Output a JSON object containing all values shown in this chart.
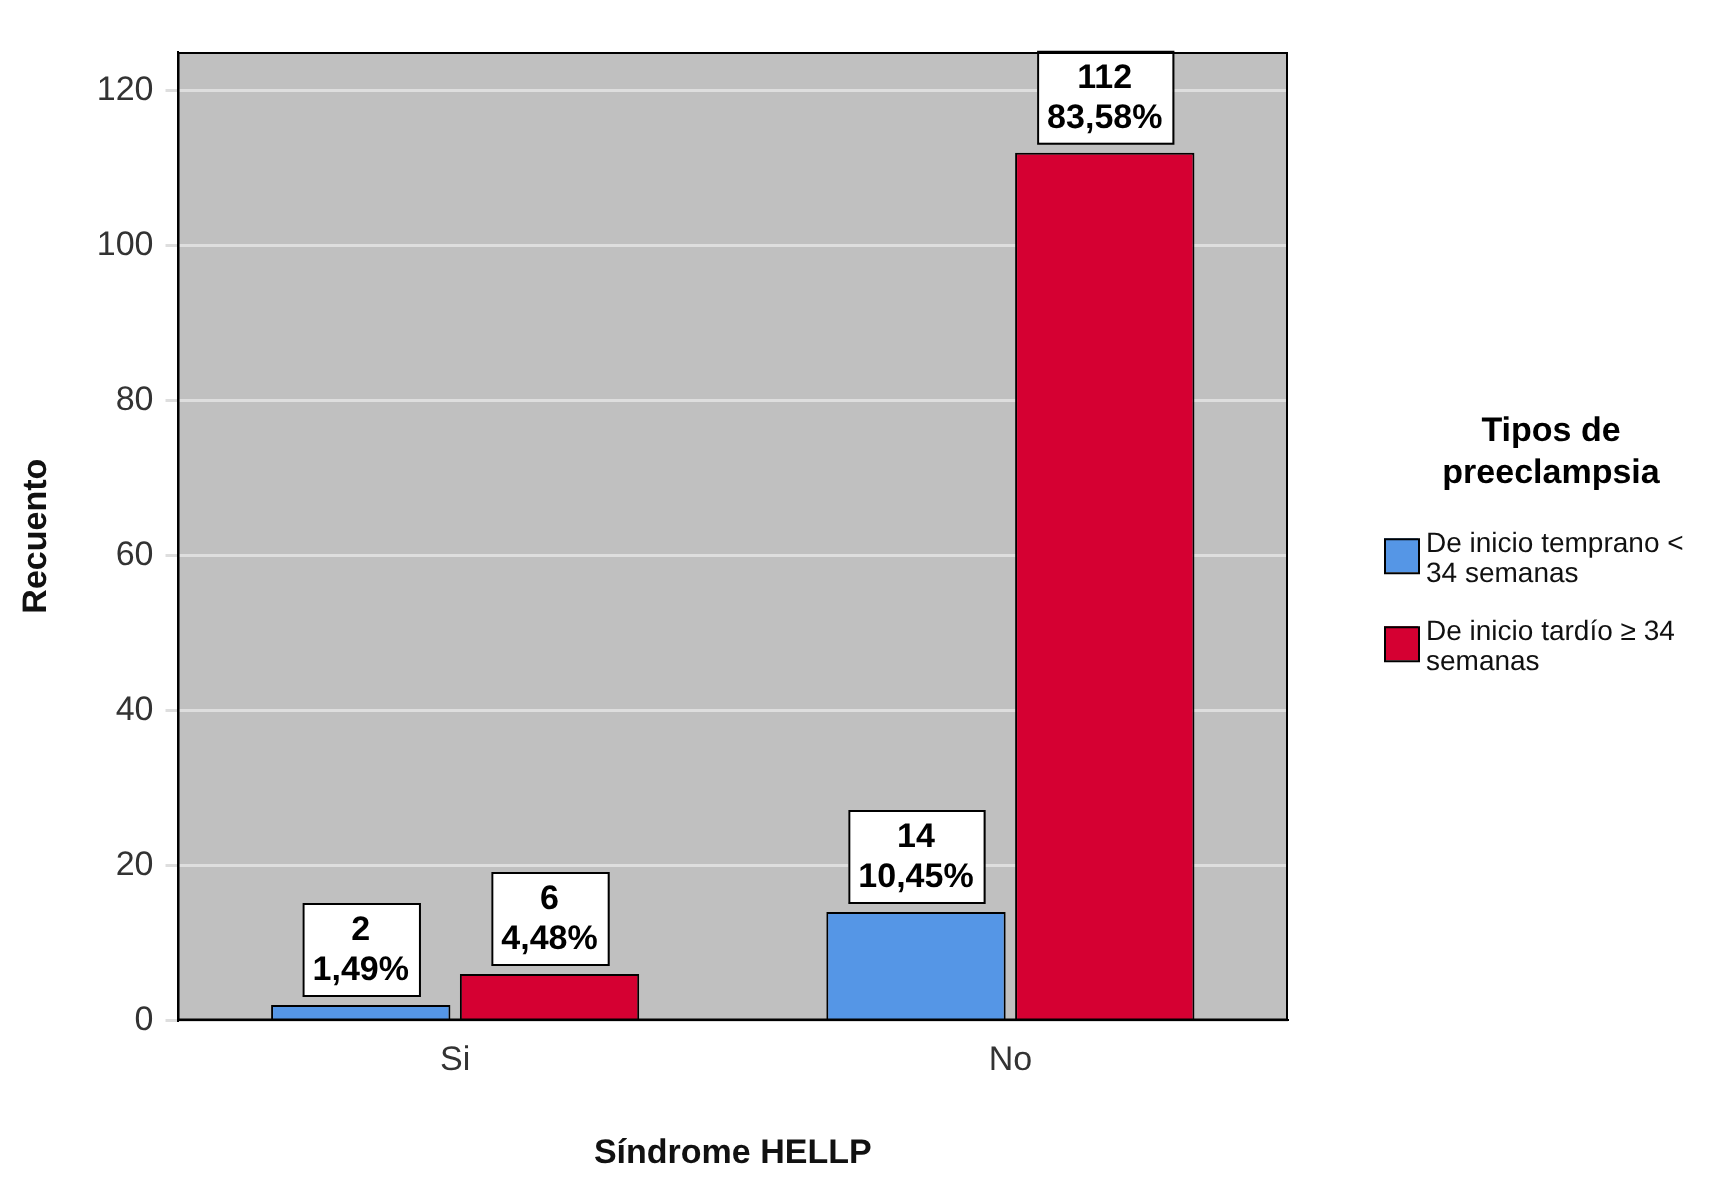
{
  "chart_data": {
    "type": "bar",
    "xlabel": "Síndrome HELLP",
    "ylabel": "Recuento",
    "legend_title": "Tipos de preeclampsia",
    "categories": [
      "Si",
      "No"
    ],
    "series": [
      {
        "name": "De inicio temprano < 34 semanas",
        "color": "#5596e6",
        "values": [
          2,
          14
        ],
        "value_labels": [
          "2\n1,49%",
          "14\n10,45%"
        ]
      },
      {
        "name": "De inicio tardío ≥ 34 semanas",
        "color": "#d50032",
        "values": [
          6,
          112
        ],
        "value_labels": [
          "6\n4,48%",
          "112\n83,58%"
        ]
      }
    ],
    "ylim": [
      0,
      125
    ],
    "yticks": [
      0,
      20,
      40,
      60,
      80,
      100,
      120
    ],
    "grid": "y",
    "legend": "right"
  }
}
